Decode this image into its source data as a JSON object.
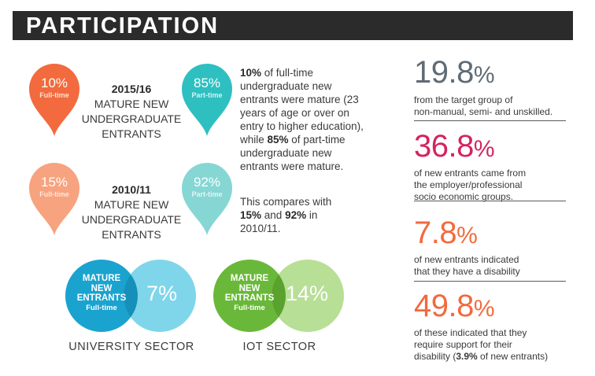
{
  "header": {
    "title": "PARTICIPATION"
  },
  "pins": {
    "ft_2015": {
      "value": "10%",
      "label": "Full-time",
      "color": "#f26a3d"
    },
    "pt_2015": {
      "value": "85%",
      "label": "Part-time",
      "color": "#2ebfc1"
    },
    "ft_2010": {
      "value": "15%",
      "label": "Full-time",
      "color": "#f7a37f"
    },
    "pt_2010": {
      "value": "92%",
      "label": "Part-time",
      "color": "#86d6d4"
    }
  },
  "center": {
    "y2015": {
      "year": "2015/16",
      "lines": [
        "MATURE NEW",
        "UNDERGRADUATE",
        "ENTRANTS"
      ]
    },
    "y2010": {
      "year": "2010/11",
      "lines": [
        "MATURE NEW",
        "UNDERGRADUATE",
        "ENTRANTS"
      ]
    }
  },
  "paragraph1": {
    "ft_pct": "10%",
    "t1": " of full-time undergraduate new entrants were mature (23 years of age or over on entry to higher education), while ",
    "pt_pct": "85%",
    "t2": " of part-time undergraduate new entrants were mature."
  },
  "paragraph2": {
    "t1": "This compares with ",
    "ft_pct": "15%",
    "t2": " and ",
    "pt_pct": "92%",
    "t3": " in 2010/11."
  },
  "venn": {
    "university": {
      "lab1": "MATURE",
      "lab2": "NEW",
      "lab3": "ENTRANTS",
      "lab4": "Full-time",
      "value": "7%",
      "caption": "UNIVERSITY SECTOR"
    },
    "iot": {
      "lab1": "MATURE",
      "lab2": "NEW",
      "lab3": "ENTRANTS",
      "lab4": "Full-time",
      "value": "14%",
      "caption": "IOT SECTOR"
    }
  },
  "stats": [
    {
      "num": "19.8",
      "pc": "%",
      "color": "#5f6b75",
      "line1": "from the target group of",
      "line2": "non-manual, semi- and unskilled.",
      "line3": ""
    },
    {
      "num": "36.8",
      "pc": "%",
      "color": "#d4245f",
      "line1": "of new entrants came from",
      "line2": "the employer/professional",
      "line3": "socio economic groups."
    },
    {
      "num": "7.8",
      "pc": "%",
      "color": "#f26a3d",
      "line1": "of new entrants indicated",
      "line2": "that they have a disability",
      "line3": ""
    },
    {
      "num": "49.8",
      "pc": "%",
      "color": "#f26a3d",
      "line1": "of these indicated that they",
      "line2": "require support for their",
      "line3a": "disability (",
      "bold": "3.9%",
      "line3b": " of new entrants)"
    }
  ]
}
